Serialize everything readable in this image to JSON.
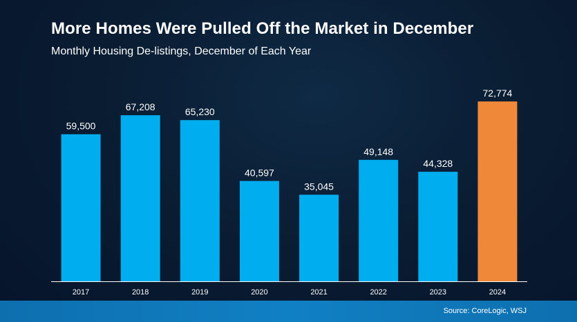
{
  "title": "More Homes Were Pulled Off the Market in December",
  "subtitle": "Monthly Housing De-listings, December of Each Year",
  "source": "Source: CoreLogic, WSJ",
  "colors": {
    "bar": "#00aeef",
    "highlight": "#f0883a",
    "text": "#ffffff",
    "axis": "#ffffff"
  },
  "chart_data": {
    "type": "bar",
    "categories": [
      "2017",
      "2018",
      "2019",
      "2020",
      "2021",
      "2022",
      "2023",
      "2024"
    ],
    "values": [
      59500,
      67208,
      65230,
      40597,
      35045,
      49148,
      44328,
      72774
    ],
    "value_labels": [
      "59,500",
      "67,208",
      "65,230",
      "40,597",
      "35,045",
      "49,148",
      "44,328",
      "72,774"
    ],
    "highlight_category": "2024",
    "ylim": [
      0,
      77000
    ],
    "grid": false,
    "legend": "none",
    "xlabel": "",
    "ylabel": ""
  }
}
